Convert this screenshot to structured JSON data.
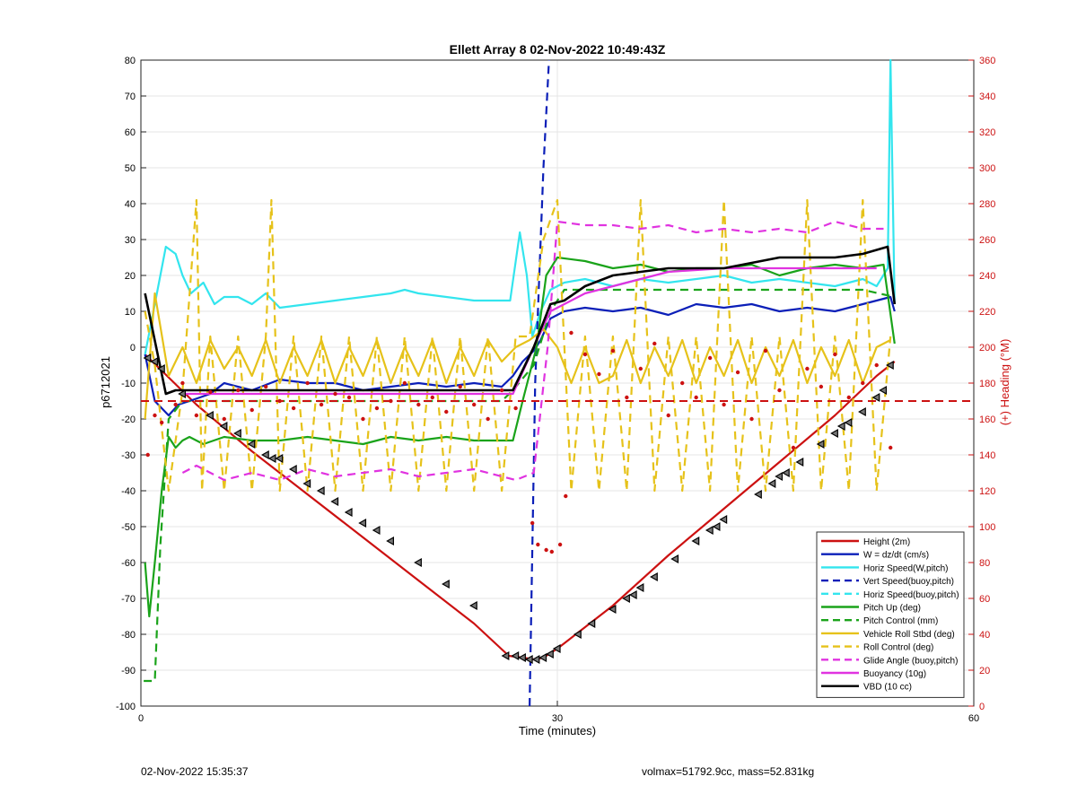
{
  "footer": {
    "timestamp": "02-Nov-2022 15:35:37",
    "summary": "volmax=51792.9cc, mass=52.831kg"
  },
  "chart_data": {
    "type": "line",
    "title": "Ellett Array 8 02-Nov-2022 10:49:43Z",
    "xlabel": "Time (minutes)",
    "ylabel": "p6712021",
    "ylabel_right": "(+) Heading (°M)",
    "xlim": [
      0,
      60
    ],
    "ylim": [
      -100,
      80
    ],
    "ylim_right": [
      0,
      360
    ],
    "x_ticks": [
      0,
      30,
      60
    ],
    "y_ticks": [
      -100,
      -90,
      -80,
      -70,
      -60,
      -50,
      -40,
      -30,
      -20,
      -10,
      0,
      10,
      20,
      30,
      40,
      50,
      60,
      70,
      80
    ],
    "y_ticks_right": [
      0,
      20,
      40,
      60,
      80,
      100,
      120,
      140,
      160,
      180,
      200,
      220,
      240,
      260,
      280,
      300,
      320,
      340,
      360
    ],
    "grid": true,
    "legend_position": "bottom-right",
    "colors": {
      "red": "#cc1111",
      "blue": "#0b1fb8",
      "cyan": "#33e5ee",
      "green": "#1aa31a",
      "yellow": "#e6c21a",
      "magenta": "#e033e0",
      "black": "#000000"
    },
    "series": [
      {
        "name": "Height (2m)",
        "color": "red",
        "dash": "solid",
        "x": [
          0.3,
          4,
          8,
          12,
          16,
          20,
          24,
          26.5,
          27.5,
          28.3,
          29,
          30,
          34,
          38,
          42,
          46,
          50,
          53,
          54.3
        ],
        "y": [
          -2,
          -16,
          -29,
          -41,
          -53,
          -65,
          -77,
          -86,
          -86.5,
          -87,
          -86.5,
          -84,
          -72,
          -58,
          -45,
          -32,
          -19,
          -8,
          -4
        ]
      },
      {
        "name": "W = dz/dt (cm/s)",
        "color": "blue",
        "dash": "solid",
        "x": [
          0.3,
          1,
          1.5,
          2,
          2.7,
          3.5,
          5,
          6,
          8,
          10,
          12,
          14,
          16,
          18,
          20,
          22,
          24,
          26,
          26.8,
          27.5,
          28.3,
          28.8,
          29.5,
          30.5,
          32,
          34,
          36,
          38,
          40,
          42,
          44,
          46,
          48,
          50,
          52,
          54,
          54.3
        ],
        "y": [
          -2,
          -15,
          -17,
          -19,
          -16,
          -15,
          -13,
          -10,
          -12,
          -9,
          -10,
          -10,
          -12,
          -11,
          -10,
          -11,
          -10,
          -11,
          -8,
          -4,
          -1,
          2,
          8,
          10,
          11,
          10,
          11,
          9,
          12,
          11,
          12,
          10,
          11,
          10,
          12,
          14,
          10
        ]
      },
      {
        "name": "Horiz Speed(W,pitch)",
        "color": "cyan",
        "dash": "solid",
        "x": [
          0.3,
          1,
          1.8,
          2.5,
          3,
          3.6,
          4.5,
          5.3,
          6,
          7,
          8,
          9,
          10,
          12,
          14,
          16,
          18,
          19,
          20,
          22,
          24,
          26,
          26.6,
          27.3,
          27.8,
          28.2,
          28.8,
          29.5,
          30.5,
          32,
          34,
          36,
          38,
          40,
          42,
          44,
          46,
          48,
          50,
          52,
          53,
          53.8,
          54,
          54.3
        ],
        "y": [
          -2,
          12,
          28,
          26,
          20,
          15,
          18,
          12,
          14,
          14,
          12,
          15,
          11,
          12,
          13,
          14,
          15,
          16,
          15,
          14,
          13,
          13,
          13,
          32,
          20,
          3,
          10,
          16,
          18,
          19,
          17,
          19,
          18,
          19,
          20,
          18,
          19,
          18,
          17,
          19,
          17,
          22,
          80,
          12
        ]
      },
      {
        "name": "Vert Speed(buoy,pitch)",
        "color": "blue",
        "dash": "dashed",
        "x": [
          28.0,
          28.4,
          29.0,
          29.4
        ],
        "y": [
          -100,
          -10,
          50,
          80
        ]
      },
      {
        "name": "Horiz Speed(buoy,pitch)",
        "color": "cyan",
        "dash": "dashed",
        "x": [],
        "y": []
      },
      {
        "name": "Pitch Up (deg)",
        "color": "green",
        "dash": "solid",
        "x": [
          0.3,
          0.6,
          1.0,
          1.5,
          2,
          2.5,
          3,
          3.5,
          4.5,
          6,
          8,
          10,
          12,
          14,
          16,
          18,
          20,
          22,
          24,
          26,
          26.8,
          27.5,
          28.5,
          29.2,
          30,
          32,
          34,
          36,
          38,
          40,
          42,
          44,
          46,
          48,
          50,
          52,
          53.5,
          54.3
        ],
        "y": [
          -60,
          -75,
          -60,
          -40,
          -25,
          -28,
          -26,
          -25,
          -27,
          -25,
          -26,
          -26,
          -25,
          -26,
          -27,
          -25,
          -26,
          -25,
          -26,
          -26,
          -26,
          -15,
          0,
          20,
          25,
          24,
          22,
          23,
          21,
          22,
          22,
          23,
          20,
          22,
          23,
          22,
          23,
          1
        ]
      },
      {
        "name": "Pitch Control (mm)",
        "color": "green",
        "dash": "dashed",
        "x": [
          0.2,
          1.0,
          1.4,
          2.0,
          3,
          6,
          10,
          14,
          18,
          22,
          26,
          26.8,
          28.3,
          29.5,
          30.5,
          34,
          40,
          46,
          52,
          54.3
        ],
        "y": [
          -93,
          -93,
          -55,
          -20,
          -15,
          -15,
          -15,
          -15,
          -15,
          -15,
          -15,
          -12,
          -5,
          10,
          16,
          16,
          16,
          16,
          16,
          14
        ]
      },
      {
        "name": "Vehicle Roll Stbd (deg)",
        "color": "yellow",
        "dash": "solid",
        "x": [
          0.3,
          1,
          2,
          3,
          4,
          5,
          6,
          7,
          8,
          9,
          10,
          11,
          12,
          13,
          14,
          15,
          16,
          17,
          18,
          19,
          20,
          21,
          22,
          23,
          24,
          25,
          26,
          27,
          28,
          29,
          30,
          31,
          32,
          33,
          34,
          35,
          36,
          37,
          38,
          39,
          40,
          41,
          42,
          43,
          44,
          45,
          46,
          47,
          48,
          49,
          50,
          51,
          52,
          53,
          54
        ],
        "y": [
          -20,
          15,
          -8,
          0,
          -10,
          2,
          -6,
          0,
          -8,
          2,
          -10,
          0,
          -8,
          2,
          -10,
          0,
          -8,
          2,
          -10,
          0,
          -8,
          2,
          -10,
          0,
          -8,
          2,
          -4,
          0,
          2,
          5,
          0,
          -10,
          0,
          -10,
          -8,
          2,
          -10,
          0,
          -8,
          2,
          -10,
          0,
          -8,
          2,
          -10,
          0,
          -8,
          2,
          -10,
          0,
          -8,
          2,
          -10,
          0,
          2
        ]
      },
      {
        "name": "Roll Control (deg)",
        "color": "yellow",
        "dash": "dashed",
        "x": [
          0.3,
          1,
          2,
          3,
          4,
          4.4,
          5,
          6,
          7,
          8,
          9,
          9.4,
          10,
          11,
          12,
          13,
          14,
          15,
          16,
          17,
          18,
          19,
          20,
          21,
          22,
          23,
          24,
          25,
          26,
          27,
          28,
          29,
          30,
          31,
          32,
          33,
          34,
          35,
          36,
          37,
          38,
          39,
          40,
          41,
          42,
          43,
          44,
          45,
          46,
          47,
          48,
          49,
          50,
          51,
          52,
          53,
          54
        ],
        "y": [
          10,
          -5,
          -40,
          -12,
          41,
          -40,
          3,
          -40,
          3,
          -40,
          3,
          41,
          -40,
          3,
          -40,
          3,
          -40,
          3,
          -40,
          3,
          -40,
          3,
          -40,
          3,
          -40,
          3,
          -40,
          3,
          -40,
          3,
          3,
          30,
          41,
          -40,
          3,
          -40,
          3,
          -40,
          41,
          -40,
          3,
          -40,
          3,
          -40,
          41,
          -40,
          3,
          -40,
          3,
          -40,
          41,
          -40,
          3,
          -40,
          41,
          -40,
          3
        ]
      },
      {
        "name": "Glide Angle (buoy,pitch)",
        "color": "magenta",
        "dash": "dashed",
        "x": [
          3,
          4,
          6,
          8,
          10,
          12,
          14,
          16,
          18,
          20,
          22,
          24,
          26,
          27,
          28.3,
          29.3,
          30,
          32,
          34,
          36,
          38,
          40,
          42,
          44,
          46,
          48,
          50,
          52,
          53.5
        ],
        "y": [
          -35,
          -33,
          -37,
          -35,
          -37,
          -34,
          -36,
          -35,
          -34,
          -36,
          -35,
          -34,
          -36,
          -37,
          -35,
          0,
          35,
          34,
          34,
          33,
          34,
          32,
          33,
          32,
          33,
          32,
          35,
          33,
          33
        ]
      },
      {
        "name": "Buoyancy (10g)",
        "color": "magenta",
        "dash": "solid",
        "x": [
          3,
          10,
          20,
          26.8,
          28.3,
          29.5,
          30.5,
          32,
          34,
          36,
          38,
          42,
          46,
          50,
          53
        ],
        "y": [
          -13,
          -13,
          -13,
          -13,
          0,
          10,
          12,
          15,
          17,
          19,
          21,
          22,
          22,
          22,
          22
        ]
      },
      {
        "name": "VBD (10 cc)",
        "color": "black",
        "dash": "solid",
        "x": [
          0.3,
          1.8,
          2.5,
          10,
          20,
          26.8,
          28.3,
          29.5,
          30.5,
          32,
          34,
          36,
          38,
          42,
          46,
          48,
          50,
          52,
          53.8,
          54.3
        ],
        "y": [
          15,
          -13,
          -12,
          -12,
          -12,
          -12,
          0,
          12,
          13,
          17,
          20,
          21,
          22,
          22,
          25,
          25,
          25,
          26,
          28,
          12
        ]
      }
    ],
    "heading": {
      "name": "(+) Heading (°M)",
      "axis": "right",
      "target": 170,
      "x": [
        0.5,
        1,
        1.5,
        2.5,
        3,
        4,
        5,
        6,
        7,
        8,
        9,
        10,
        11,
        12,
        13,
        14,
        15,
        16,
        17,
        18,
        19,
        20,
        21,
        22,
        23,
        24,
        25,
        26,
        27,
        28.2,
        28.6,
        29.2,
        29.6,
        30.2,
        30.6,
        31,
        32,
        33,
        34,
        35,
        36,
        37,
        38,
        39,
        40,
        41,
        42,
        43,
        44,
        45,
        46,
        47,
        48,
        49,
        50,
        51,
        52,
        53,
        54
      ],
      "y": [
        140,
        162,
        158,
        168,
        180,
        162,
        175,
        160,
        176,
        165,
        178,
        170,
        166,
        180,
        168,
        174,
        172,
        160,
        166,
        170,
        180,
        168,
        172,
        164,
        178,
        168,
        160,
        176,
        166,
        102,
        90,
        87,
        86,
        90,
        117,
        208,
        196,
        185,
        198,
        172,
        188,
        202,
        162,
        180,
        172,
        194,
        168,
        186,
        160,
        198,
        176,
        144,
        188,
        178,
        196,
        172,
        180,
        190,
        144
      ]
    },
    "markers": {
      "symbol": "left-triangle",
      "x": [
        0.5,
        1,
        1.5,
        3,
        5,
        6,
        7,
        8,
        9,
        9.5,
        10,
        11,
        12,
        13,
        14,
        15,
        16,
        17,
        18,
        20,
        22,
        24,
        26.3,
        27,
        27.5,
        28,
        28.5,
        29,
        29.5,
        30,
        31.5,
        32.5,
        34,
        35,
        35.5,
        36,
        37,
        38.5,
        40,
        41,
        41.5,
        42,
        44.5,
        45.5,
        46,
        46.5,
        47.5,
        49,
        50,
        50.5,
        51,
        52,
        53,
        53.5,
        54
      ],
      "y": [
        -3,
        -4,
        -6,
        -13,
        -19,
        -22,
        -24,
        -27,
        -30,
        -31,
        -31,
        -34,
        -38,
        -40,
        -43,
        -46,
        -49,
        -51,
        -54,
        -60,
        -66,
        -72,
        -86,
        -86,
        -86.5,
        -87,
        -87,
        -86.5,
        -85.5,
        -84,
        -80,
        -77,
        -73,
        -70,
        -69,
        -67,
        -64,
        -59,
        -54,
        -51,
        -50,
        -48,
        -41,
        -38,
        -36,
        -35,
        -32,
        -27,
        -24,
        -22,
        -21,
        -18,
        -14,
        -12,
        -5
      ]
    }
  }
}
